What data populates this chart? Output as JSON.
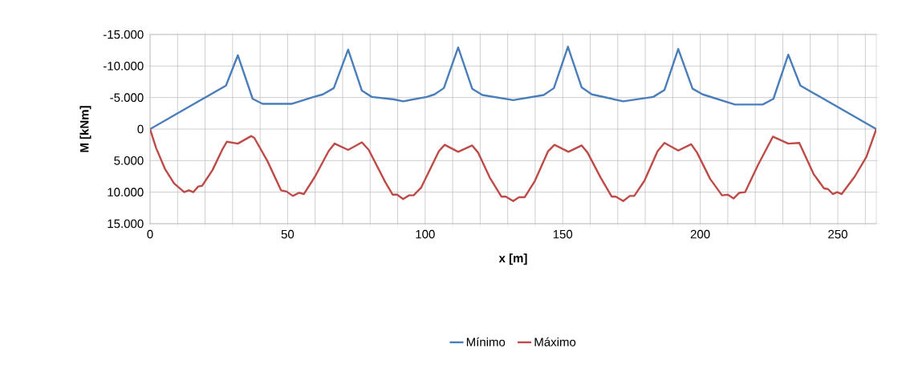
{
  "chart_data": {
    "type": "line",
    "xlabel": "x [m]",
    "ylabel": "M [kNm]",
    "xlim": [
      0,
      264
    ],
    "ylim": [
      15000,
      -15000
    ],
    "xticks": [
      0,
      {
        "value": 10,
        "label": null
      },
      {
        "value": 20,
        "label": null
      },
      {
        "value": 30,
        "label": null
      },
      {
        "value": 40,
        "label": null
      },
      50,
      {
        "value": 60,
        "label": null
      },
      {
        "value": 70,
        "label": null
      },
      {
        "value": 80,
        "label": null
      },
      {
        "value": 90,
        "label": null
      },
      100,
      {
        "value": 110,
        "label": null
      },
      {
        "value": 120,
        "label": null
      },
      {
        "value": 130,
        "label": null
      },
      {
        "value": 140,
        "label": null
      },
      150,
      {
        "value": 160,
        "label": null
      },
      {
        "value": 170,
        "label": null
      },
      {
        "value": 180,
        "label": null
      },
      {
        "value": 190,
        "label": null
      },
      200,
      {
        "value": 210,
        "label": null
      },
      {
        "value": 220,
        "label": null
      },
      {
        "value": 230,
        "label": null
      },
      {
        "value": 240,
        "label": null
      },
      250,
      {
        "value": 260,
        "label": null
      }
    ],
    "yticks": [
      {
        "value": -15000,
        "label": "-15.000"
      },
      {
        "value": -10000,
        "label": "-10.000"
      },
      {
        "value": -5000,
        "label": "-5.000"
      },
      0,
      {
        "value": 5000,
        "label": "5.000"
      },
      {
        "value": 10000,
        "label": "10.000"
      },
      {
        "value": 15000,
        "label": "15.000"
      }
    ],
    "grid": true,
    "legend": "bottom",
    "marker": "none",
    "line_style": "solid",
    "series": [
      {
        "name": "Mínimo",
        "color": "#4a7ebb",
        "x": [
          0,
          27.6,
          31.9,
          37.3,
          40.9,
          51.4,
          59.5,
          62.8,
          66.8,
          72,
          77,
          80.6,
          88.7,
          92,
          100.6,
          103.4,
          106.8,
          112,
          117.1,
          120.8,
          132,
          143.1,
          146.8,
          151.9,
          156.9,
          160.6,
          172,
          182.9,
          187,
          192,
          197.2,
          200.9,
          212.6,
          222.7,
          226.6,
          232,
          236.4,
          264
        ],
        "values": [
          0,
          -6900,
          -11700,
          -4800,
          -4000,
          -4000,
          -5100,
          -5500,
          -6500,
          -12600,
          -6100,
          -5100,
          -4700,
          -4400,
          -5100,
          -5500,
          -6500,
          -12950,
          -6400,
          -5400,
          -4600,
          -5400,
          -6500,
          -13050,
          -6600,
          -5500,
          -4400,
          -5100,
          -6200,
          -12700,
          -6400,
          -5500,
          -3900,
          -3900,
          -4800,
          -11800,
          -6900,
          0
        ]
      },
      {
        "name": "Máximo",
        "color": "#be4b48",
        "x": [
          0,
          2.2,
          5.4,
          8.7,
          12.4,
          14.1,
          15.7,
          17.5,
          18.9,
          22.7,
          26.2,
          27.9,
          31.9,
          36.8,
          37.9,
          42.7,
          47.6,
          49.6,
          51.9,
          54.1,
          55.9,
          60,
          64.9,
          67.1,
          72,
          77,
          79.5,
          85.5,
          88.2,
          89.8,
          92,
          94.2,
          95.8,
          98.5,
          105,
          107.1,
          112,
          117.1,
          119.2,
          123.5,
          127.7,
          129.3,
          132,
          134.1,
          136.2,
          139.9,
          144.7,
          147,
          152.1,
          156.9,
          159,
          163.8,
          167.8,
          169.3,
          172,
          174.4,
          176,
          179.7,
          184.5,
          187,
          192,
          196.7,
          198.8,
          203.6,
          207.9,
          210,
          212.1,
          214.2,
          216.3,
          221.1,
          226.4,
          232,
          236,
          241.3,
          245,
          246.4,
          248.2,
          249.8,
          251.4,
          256.2,
          260.4,
          264
        ],
        "values": [
          0,
          3000,
          6300,
          8600,
          10000,
          9700,
          10000,
          9100,
          9000,
          6500,
          3300,
          2000,
          2300,
          1100,
          1400,
          5100,
          9700,
          9900,
          10600,
          10100,
          10300,
          7500,
          3500,
          2300,
          3300,
          2100,
          3300,
          8400,
          10400,
          10400,
          11100,
          10500,
          10500,
          9300,
          3500,
          2500,
          3600,
          2600,
          3700,
          7700,
          10700,
          10700,
          11400,
          10800,
          10800,
          8200,
          3500,
          2500,
          3600,
          2600,
          3700,
          7700,
          10700,
          10700,
          11400,
          10600,
          10600,
          8200,
          3500,
          2200,
          3400,
          2400,
          3700,
          7900,
          10500,
          10400,
          11000,
          10100,
          10000,
          5600,
          1200,
          2300,
          2200,
          7200,
          9400,
          9500,
          10300,
          10000,
          10300,
          7500,
          4400,
          0
        ]
      }
    ]
  }
}
